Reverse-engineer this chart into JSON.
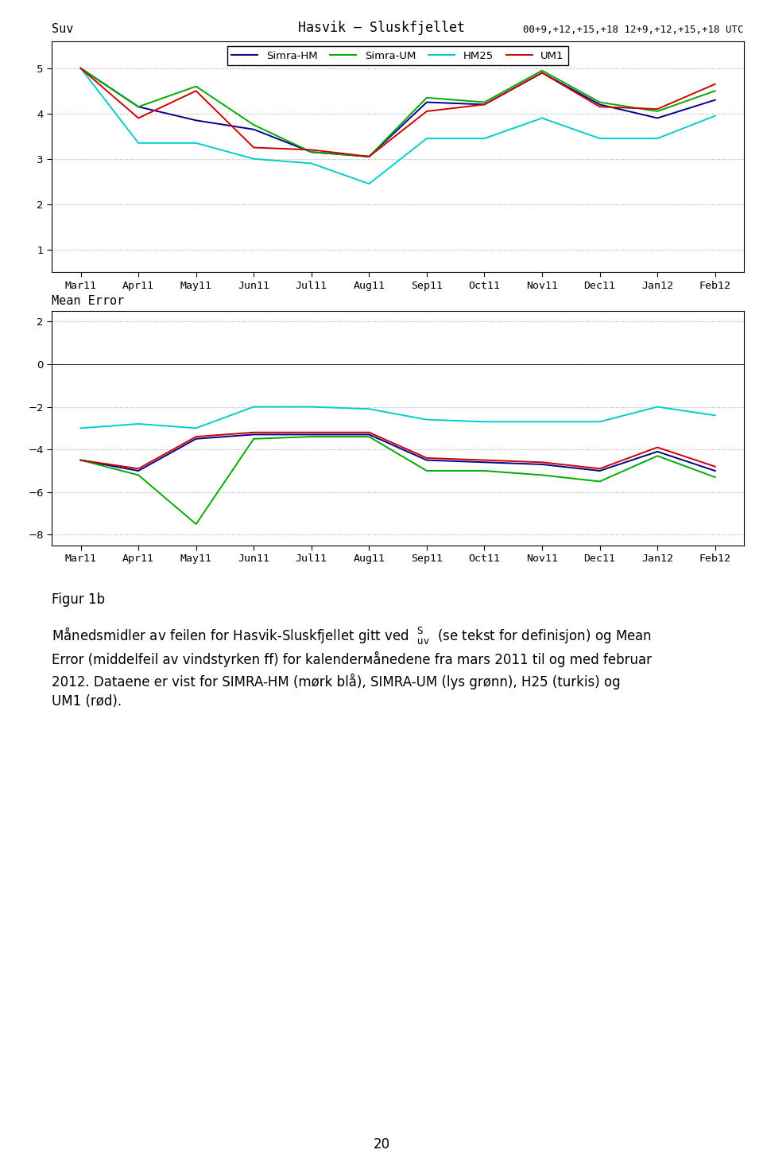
{
  "title_center": "Hasvik – Sluskfjellet",
  "title_left": "Suv",
  "title_right": "00+9,+12,+15,+18 12+9,+12,+15,+18 UTC",
  "xlabel_labels": [
    "Mar11",
    "Apr11",
    "May11",
    "Jun11",
    "Jul11",
    "Aug11",
    "Sep11",
    "Oct11",
    "Nov11",
    "Dec11",
    "Jan12",
    "Feb12"
  ],
  "legend_labels": [
    "Simra-HM",
    "Simra-UM",
    "HM25",
    "UM1"
  ],
  "colors": {
    "simra_hm": "#00008B",
    "simra_um": "#00AA00",
    "hm25": "#00CCCC",
    "um1": "#CC0000"
  },
  "suv_data": {
    "simra_hm": [
      5.0,
      4.15,
      3.85,
      3.65,
      3.15,
      3.05,
      4.25,
      4.2,
      4.9,
      4.2,
      3.9,
      4.3
    ],
    "simra_um": [
      5.0,
      4.15,
      4.6,
      3.75,
      3.15,
      3.05,
      4.35,
      4.25,
      4.95,
      4.25,
      4.05,
      4.5
    ],
    "hm25": [
      5.0,
      3.35,
      3.35,
      3.0,
      2.9,
      2.45,
      3.45,
      3.45,
      3.9,
      3.45,
      3.45,
      3.95
    ],
    "um1": [
      5.0,
      3.9,
      4.5,
      3.25,
      3.2,
      3.05,
      4.05,
      4.2,
      4.9,
      4.15,
      4.1,
      4.65
    ]
  },
  "me_data": {
    "simra_hm": [
      -4.5,
      -5.0,
      -3.5,
      -3.3,
      -3.3,
      -3.3,
      -4.5,
      -4.6,
      -4.7,
      -5.0,
      -4.1,
      -5.0
    ],
    "simra_um": [
      -4.5,
      -5.2,
      -7.5,
      -3.5,
      -3.4,
      -3.4,
      -5.0,
      -5.0,
      -5.2,
      -5.5,
      -4.3,
      -5.3
    ],
    "hm25": [
      -3.0,
      -2.8,
      -3.0,
      -2.0,
      -2.0,
      -2.1,
      -2.6,
      -2.7,
      -2.7,
      -2.7,
      -2.0,
      -2.4
    ],
    "um1": [
      -4.5,
      -4.9,
      -3.4,
      -3.2,
      -3.2,
      -3.2,
      -4.4,
      -4.5,
      -4.6,
      -4.9,
      -3.9,
      -4.8
    ]
  },
  "suv_ylim": [
    0.5,
    5.6
  ],
  "suv_yticks": [
    1,
    2,
    3,
    4,
    5
  ],
  "me_ylim": [
    -8.5,
    2.5
  ],
  "me_yticks": [
    -8,
    -6,
    -4,
    -2,
    0,
    2
  ],
  "figsize": [
    9.6,
    14.75
  ],
  "dpi": 100,
  "background": "#ffffff",
  "text_color": "#000000",
  "caption_title": "Figur 1b",
  "page_number": "20"
}
